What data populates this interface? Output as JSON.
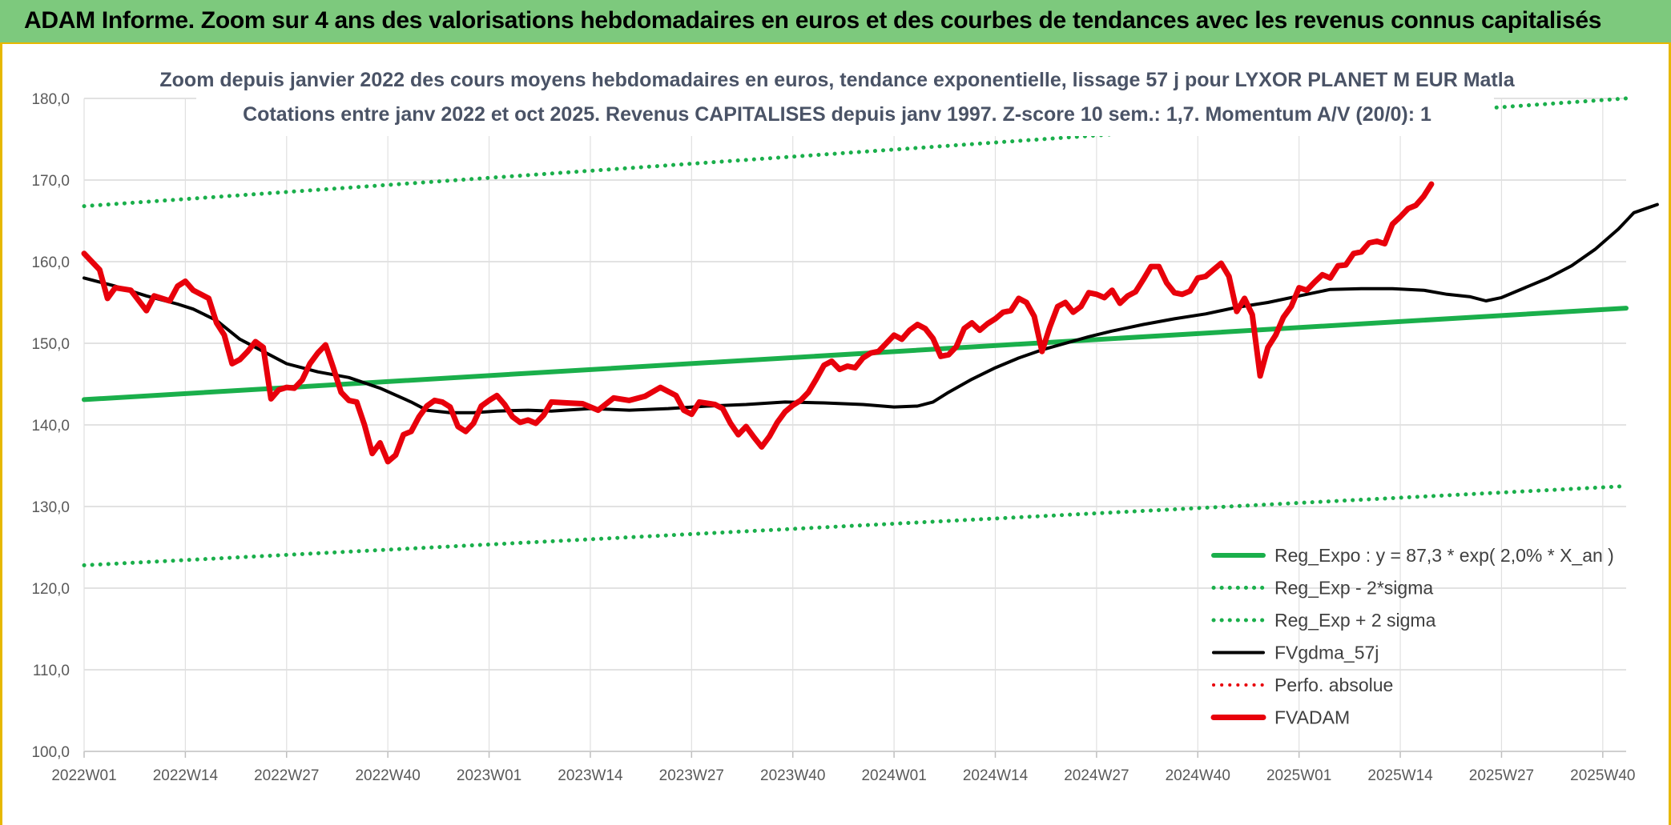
{
  "banner": {
    "title": "ADAM Informe. Zoom sur 4 ans des valorisations hebdomadaires en euros et des courbes de tendances avec les revenus connus capitalisés"
  },
  "chart_data": {
    "type": "line",
    "title": "Zoom depuis janvier 2022 des cours moyens hebdomadaires en euros, tendance exponentielle, lissage 57 j pour LYXOR PLANET M EUR Matla",
    "subtitle": "Cotations entre janv 2022 et oct 2025. Revenus CAPITALISES depuis janv 1997. Z-score 10 sem.: 1,7. Momentum A/V (20/0): 1",
    "xlabel": "",
    "ylabel": "",
    "x_ticks": [
      "2022W01",
      "2022W14",
      "2022W27",
      "2022W40",
      "2023W01",
      "2023W14",
      "2023W27",
      "2023W40",
      "2024W01",
      "2024W14",
      "2024W27",
      "2024W40",
      "2025W01",
      "2025W14",
      "2025W27",
      "2025W40"
    ],
    "y_ticks": [
      "100,0",
      "110,0",
      "120,0",
      "130,0",
      "140,0",
      "150,0",
      "160,0",
      "170,0",
      "180,0"
    ],
    "ylim": [
      100,
      180
    ],
    "x_count": 199,
    "grid": true,
    "legend_position": "bottom-right",
    "series": [
      {
        "name": "Reg_Expo : y = 87,3 * exp( 2,0% *  X_an )",
        "color": "#1aaf4b",
        "style": "solid",
        "width": 6,
        "points": [
          [
            0,
            143.1
          ],
          [
            198,
            154.3
          ]
        ]
      },
      {
        "name": "Reg_Exp - 2*sigma",
        "color": "#1aaf4b",
        "style": "dotted",
        "width": 5,
        "points": [
          [
            0,
            122.8
          ],
          [
            198,
            132.5
          ]
        ]
      },
      {
        "name": "Reg_Exp + 2 sigma",
        "color": "#1aaf4b",
        "style": "dotted",
        "width": 5,
        "points": [
          [
            0,
            166.8
          ],
          [
            198,
            180.0
          ]
        ]
      },
      {
        "name": "FVgdma_57j",
        "color": "#000000",
        "style": "solid",
        "width": 4,
        "points": [
          [
            0,
            158.0
          ],
          [
            4,
            157.0
          ],
          [
            8,
            155.8
          ],
          [
            12,
            154.8
          ],
          [
            14,
            154.2
          ],
          [
            17,
            152.8
          ],
          [
            20,
            150.5
          ],
          [
            23,
            149.0
          ],
          [
            26,
            147.5
          ],
          [
            30,
            146.5
          ],
          [
            34,
            145.8
          ],
          [
            38,
            144.5
          ],
          [
            42,
            142.8
          ],
          [
            44,
            141.8
          ],
          [
            47,
            141.5
          ],
          [
            50,
            141.5
          ],
          [
            53,
            141.7
          ],
          [
            57,
            141.8
          ],
          [
            60,
            141.7
          ],
          [
            65,
            142.0
          ],
          [
            70,
            141.8
          ],
          [
            75,
            142.0
          ],
          [
            80,
            142.3
          ],
          [
            85,
            142.5
          ],
          [
            90,
            142.8
          ],
          [
            95,
            142.7
          ],
          [
            100,
            142.5
          ],
          [
            104,
            142.2
          ],
          [
            107,
            142.3
          ],
          [
            109,
            142.8
          ],
          [
            111,
            144.0
          ],
          [
            114,
            145.6
          ],
          [
            117,
            147.0
          ],
          [
            120,
            148.2
          ],
          [
            123,
            149.2
          ],
          [
            126,
            150.0
          ],
          [
            129,
            150.8
          ],
          [
            132,
            151.5
          ],
          [
            136,
            152.3
          ],
          [
            140,
            153.0
          ],
          [
            144,
            153.6
          ],
          [
            148,
            154.4
          ],
          [
            152,
            155.0
          ],
          [
            156,
            155.8
          ],
          [
            160,
            156.6
          ],
          [
            164,
            156.7
          ],
          [
            168,
            156.7
          ],
          [
            172,
            156.5
          ],
          [
            175,
            156.0
          ],
          [
            178,
            155.7
          ],
          [
            180,
            155.2
          ],
          [
            182,
            155.6
          ],
          [
            185,
            156.8
          ],
          [
            188,
            158.0
          ],
          [
            191,
            159.5
          ],
          [
            194,
            161.5
          ],
          [
            197,
            164.0
          ],
          [
            199,
            166.0
          ],
          [
            202,
            167.0
          ]
        ]
      },
      {
        "name": "Perfo. absolue",
        "color": "#e8000b",
        "style": "dotted",
        "width": 4,
        "points": []
      },
      {
        "name": "FVADAM",
        "color": "#e8000b",
        "style": "solid",
        "width": 7,
        "points": [
          [
            0,
            161.0
          ],
          [
            2,
            159.0
          ],
          [
            3,
            155.5
          ],
          [
            4,
            156.8
          ],
          [
            6,
            156.5
          ],
          [
            8,
            154.0
          ],
          [
            9,
            155.8
          ],
          [
            11,
            155.2
          ],
          [
            12,
            157.0
          ],
          [
            13,
            157.6
          ],
          [
            14,
            156.5
          ],
          [
            16,
            155.5
          ],
          [
            17,
            152.5
          ],
          [
            18,
            151.0
          ],
          [
            19,
            147.5
          ],
          [
            20,
            148.0
          ],
          [
            21,
            149.0
          ],
          [
            22,
            150.2
          ],
          [
            23,
            149.5
          ],
          [
            24,
            143.2
          ],
          [
            25,
            144.3
          ],
          [
            26,
            144.6
          ],
          [
            27,
            144.5
          ],
          [
            28,
            145.5
          ],
          [
            29,
            147.5
          ],
          [
            30,
            148.8
          ],
          [
            31,
            149.8
          ],
          [
            32,
            147.0
          ],
          [
            33,
            144.0
          ],
          [
            34,
            143.0
          ],
          [
            35,
            142.8
          ],
          [
            36,
            140.0
          ],
          [
            37,
            136.5
          ],
          [
            38,
            137.8
          ],
          [
            39,
            135.5
          ],
          [
            40,
            136.3
          ],
          [
            41,
            138.8
          ],
          [
            42,
            139.2
          ],
          [
            43,
            141.0
          ],
          [
            44,
            142.3
          ],
          [
            45,
            143.0
          ],
          [
            46,
            142.8
          ],
          [
            47,
            142.2
          ],
          [
            48,
            139.8
          ],
          [
            49,
            139.2
          ],
          [
            50,
            140.2
          ],
          [
            51,
            142.3
          ],
          [
            52,
            143.0
          ],
          [
            53,
            143.6
          ],
          [
            54,
            142.5
          ],
          [
            55,
            141.0
          ],
          [
            56,
            140.3
          ],
          [
            57,
            140.6
          ],
          [
            58,
            140.2
          ],
          [
            59,
            141.2
          ],
          [
            60,
            142.8
          ],
          [
            62,
            142.7
          ],
          [
            64,
            142.6
          ],
          [
            66,
            141.8
          ],
          [
            68,
            143.3
          ],
          [
            70,
            143.0
          ],
          [
            72,
            143.5
          ],
          [
            74,
            144.6
          ],
          [
            76,
            143.6
          ],
          [
            77,
            141.8
          ],
          [
            78,
            141.3
          ],
          [
            79,
            142.8
          ],
          [
            81,
            142.5
          ],
          [
            82,
            142.0
          ],
          [
            83,
            140.2
          ],
          [
            84,
            138.8
          ],
          [
            85,
            139.8
          ],
          [
            86,
            138.5
          ],
          [
            87,
            137.3
          ],
          [
            88,
            138.6
          ],
          [
            89,
            140.3
          ],
          [
            90,
            141.6
          ],
          [
            91,
            142.4
          ],
          [
            92,
            143.0
          ],
          [
            93,
            144.0
          ],
          [
            94,
            145.6
          ],
          [
            95,
            147.3
          ],
          [
            96,
            147.8
          ],
          [
            97,
            146.8
          ],
          [
            98,
            147.2
          ],
          [
            99,
            147.0
          ],
          [
            100,
            148.2
          ],
          [
            101,
            148.8
          ],
          [
            102,
            149.0
          ],
          [
            103,
            150.0
          ],
          [
            104,
            151.0
          ],
          [
            105,
            150.5
          ],
          [
            106,
            151.6
          ],
          [
            107,
            152.3
          ],
          [
            108,
            151.8
          ],
          [
            109,
            150.6
          ],
          [
            110,
            148.4
          ],
          [
            111,
            148.6
          ],
          [
            112,
            149.6
          ],
          [
            113,
            151.8
          ],
          [
            114,
            152.5
          ],
          [
            115,
            151.6
          ],
          [
            116,
            152.4
          ],
          [
            117,
            153.0
          ],
          [
            118,
            153.8
          ],
          [
            119,
            154.0
          ],
          [
            120,
            155.5
          ],
          [
            121,
            155.0
          ],
          [
            122,
            153.3
          ],
          [
            123,
            149.0
          ],
          [
            124,
            152.0
          ],
          [
            125,
            154.5
          ],
          [
            126,
            155.0
          ],
          [
            127,
            153.8
          ],
          [
            128,
            154.5
          ],
          [
            129,
            156.2
          ],
          [
            130,
            156.0
          ],
          [
            131,
            155.6
          ],
          [
            132,
            156.5
          ],
          [
            133,
            154.9
          ],
          [
            134,
            155.8
          ],
          [
            135,
            156.3
          ],
          [
            136,
            157.8
          ],
          [
            137,
            159.4
          ],
          [
            138,
            159.4
          ],
          [
            139,
            157.4
          ],
          [
            140,
            156.2
          ],
          [
            141,
            156.0
          ],
          [
            142,
            156.4
          ],
          [
            143,
            158.0
          ],
          [
            144,
            158.2
          ],
          [
            145,
            159.0
          ],
          [
            146,
            159.8
          ],
          [
            147,
            158.2
          ],
          [
            148,
            153.9
          ],
          [
            149,
            155.5
          ],
          [
            150,
            153.5
          ],
          [
            151,
            146.0
          ],
          [
            152,
            149.5
          ],
          [
            153,
            151.0
          ],
          [
            154,
            153.2
          ],
          [
            155,
            154.5
          ],
          [
            156,
            156.8
          ],
          [
            157,
            156.5
          ],
          [
            158,
            157.5
          ],
          [
            159,
            158.4
          ],
          [
            160,
            158.0
          ],
          [
            161,
            159.5
          ],
          [
            162,
            159.6
          ],
          [
            163,
            161.0
          ],
          [
            164,
            161.2
          ],
          [
            165,
            162.3
          ],
          [
            166,
            162.5
          ],
          [
            167,
            162.2
          ],
          [
            168,
            164.6
          ],
          [
            169,
            165.5
          ],
          [
            170,
            166.5
          ],
          [
            171,
            166.9
          ],
          [
            172,
            168.0
          ],
          [
            173,
            169.5
          ]
        ]
      }
    ]
  }
}
